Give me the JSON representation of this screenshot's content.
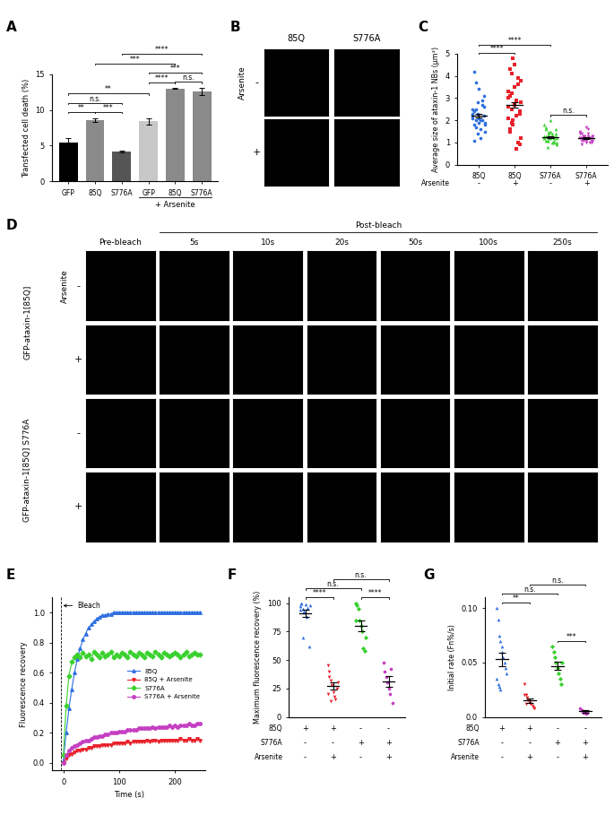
{
  "chart_data": [
    {
      "panel": "A",
      "type": "bar",
      "ylabel": "Transfected cell death (%)",
      "categories": [
        "GFP",
        "85Q",
        "S776A",
        "GFP",
        "85Q",
        "S776A"
      ],
      "values": [
        5.4,
        8.6,
        4.2,
        8.4,
        13.0,
        12.6
      ],
      "errors": [
        0.6,
        0.25,
        0.1,
        0.45,
        0.08,
        0.5
      ],
      "colors": [
        "#000000",
        "#8a8a8a",
        "#555555",
        "#c8c8c8",
        "#8a8a8a",
        "#8a8a8a"
      ],
      "ylim": [
        0,
        15
      ],
      "yticks": [
        0,
        5,
        10,
        15
      ],
      "groups": [
        {
          "label": "+ Arsenite",
          "from": 3,
          "to": 5
        }
      ],
      "comparisons": [
        {
          "from": 0,
          "to": 1,
          "label": "**"
        },
        {
          "from": 1,
          "to": 2,
          "label": "***"
        },
        {
          "from": 0,
          "to": 2,
          "label": "n.s."
        },
        {
          "from": 3,
          "to": 4,
          "label": "****"
        },
        {
          "from": 4,
          "to": 5,
          "label": "n.s."
        },
        {
          "from": 3,
          "to": 5,
          "label": "***"
        },
        {
          "from": 0,
          "to": 3,
          "label": "**"
        },
        {
          "from": 1,
          "to": 4,
          "label": "***"
        },
        {
          "from": 2,
          "to": 5,
          "label": "****"
        }
      ]
    },
    {
      "panel": "C",
      "type": "dot",
      "ylabel": "Average size of ataxin-1 NBs (µm²)",
      "categories": [
        "85Q",
        "85Q",
        "S776A",
        "S776A"
      ],
      "condition_rows": [
        {
          "label": "Arsenite",
          "values": [
            "-",
            "+",
            "-",
            "+"
          ]
        }
      ],
      "ylim": [
        0,
        5
      ],
      "yticks": [
        0,
        1,
        2,
        3,
        4,
        5
      ],
      "groups": [
        {
          "color": "#2f6fe0",
          "marker": "circle",
          "mean": 2.2,
          "error": 0.07,
          "values": [
            2.1,
            1.8,
            2.5,
            2.3,
            1.9,
            2.0,
            2.7,
            3.1,
            1.5,
            2.2,
            2.4,
            1.7,
            2.8,
            3.4,
            1.2,
            2.0,
            2.6,
            1.9,
            2.3,
            4.2,
            3.7,
            1.4,
            2.1,
            1.6,
            2.9,
            2.2,
            1.8,
            2.5,
            1.1,
            2.0
          ]
        },
        {
          "color": "#e8212b",
          "marker": "square",
          "mean": 2.7,
          "error": 0.12,
          "values": [
            2.6,
            3.1,
            1.9,
            4.8,
            4.5,
            2.2,
            3.6,
            0.9,
            2.8,
            3.3,
            1.5,
            4.1,
            2.0,
            2.7,
            0.7,
            3.9,
            2.4,
            1.2,
            3.0,
            4.3,
            2.5,
            1.8,
            3.5,
            2.9,
            1.0,
            2.3,
            3.8,
            2.1,
            1.6,
            3.2
          ]
        },
        {
          "color": "#39d12e",
          "marker": "triangle_up",
          "mean": 1.25,
          "error": 0.03,
          "values": [
            1.2,
            1.3,
            1.1,
            1.4,
            1.5,
            1.0,
            1.2,
            1.6,
            0.9,
            1.3,
            1.7,
            1.1,
            1.2,
            2.0,
            1.4,
            1.0,
            1.3,
            1.2,
            1.8,
            1.1,
            0.8,
            1.5,
            1.2,
            1.3,
            1.1,
            1.4,
            1.0,
            1.2,
            1.6,
            1.3
          ]
        },
        {
          "color": "#c53fc2",
          "marker": "triangle_down",
          "mean": 1.2,
          "error": 0.03,
          "values": [
            1.2,
            1.1,
            1.3,
            1.2,
            1.0,
            1.4,
            1.2,
            1.1,
            1.3,
            1.5,
            0.9,
            1.2,
            1.3,
            1.1,
            1.6,
            1.2,
            1.0,
            1.3,
            1.2,
            1.4,
            1.1,
            1.2,
            1.7,
            1.3,
            1.0,
            1.2,
            1.1,
            1.4,
            1.2,
            1.3
          ]
        }
      ],
      "comparisons": [
        {
          "from": 0,
          "to": 1,
          "label": "****"
        },
        {
          "from": 0,
          "to": 2,
          "label": "****"
        },
        {
          "from": 2,
          "to": 3,
          "label": "n.s."
        }
      ]
    },
    {
      "panel": "E",
      "type": "line",
      "xlabel": "Time (s)",
      "ylabel": "Fluorescence recovery",
      "xlim": [
        -20,
        255
      ],
      "xticks": [
        0,
        100,
        200
      ],
      "ylim": [
        -0.05,
        1.1
      ],
      "yticks": [
        {
          "value": 0,
          "label": "0.0"
        },
        0.2,
        0.4,
        0.6,
        0.8,
        {
          "value": 1,
          "label": "1.0"
        }
      ],
      "legend": "center right",
      "annotations": [
        {
          "text": "Bleach",
          "x": -5
        }
      ],
      "x": [
        0,
        5,
        10,
        15,
        20,
        25,
        30,
        35,
        40,
        45,
        50,
        55,
        60,
        65,
        70,
        75,
        80,
        85,
        90,
        95,
        100,
        105,
        110,
        115,
        120,
        125,
        130,
        135,
        140,
        145,
        150,
        155,
        160,
        165,
        170,
        175,
        180,
        185,
        190,
        195,
        200,
        205,
        210,
        215,
        220,
        225,
        230,
        235,
        240,
        245
      ],
      "series": [
        {
          "name": "85Q",
          "color": "#2f6fe0",
          "marker": "triangle_up",
          "line_style": "solid",
          "values": [
            0.02,
            0.2,
            0.36,
            0.49,
            0.6,
            0.69,
            0.76,
            0.82,
            0.86,
            0.9,
            0.92,
            0.94,
            0.96,
            0.97,
            0.98,
            0.98,
            0.99,
            0.99,
            1.0,
            1.0,
            1.0,
            1.0,
            1.0,
            1.0,
            1.0,
            1.0,
            1.0,
            1.0,
            1.0,
            1.0,
            1.0,
            1.0,
            1.0,
            1.0,
            1.0,
            1.0,
            1.0,
            1.0,
            1.0,
            1.0,
            1.0,
            1.0,
            1.0,
            1.0,
            1.0,
            1.0,
            1.0,
            1.0,
            1.0,
            1.0
          ]
        },
        {
          "name": "85Q + Arsenite",
          "color": "#e8212b",
          "marker": "triangle_down",
          "line_style": "solid",
          "values": [
            0.0,
            0.03,
            0.05,
            0.06,
            0.07,
            0.08,
            0.08,
            0.09,
            0.09,
            0.1,
            0.1,
            0.11,
            0.11,
            0.11,
            0.12,
            0.12,
            0.12,
            0.12,
            0.13,
            0.13,
            0.13,
            0.13,
            0.13,
            0.14,
            0.13,
            0.14,
            0.14,
            0.14,
            0.14,
            0.14,
            0.15,
            0.14,
            0.15,
            0.15,
            0.14,
            0.15,
            0.15,
            0.15,
            0.15,
            0.15,
            0.15,
            0.15,
            0.16,
            0.15,
            0.15,
            0.16,
            0.15,
            0.15,
            0.16,
            0.15
          ]
        },
        {
          "name": "S776A",
          "color": "#39d12e",
          "marker": "diamond",
          "line_style": "solid",
          "values": [
            0.05,
            0.38,
            0.58,
            0.67,
            0.7,
            0.72,
            0.7,
            0.73,
            0.71,
            0.72,
            0.69,
            0.74,
            0.72,
            0.7,
            0.73,
            0.71,
            0.72,
            0.74,
            0.7,
            0.72,
            0.71,
            0.73,
            0.72,
            0.7,
            0.74,
            0.72,
            0.71,
            0.73,
            0.72,
            0.7,
            0.73,
            0.72,
            0.71,
            0.74,
            0.72,
            0.7,
            0.73,
            0.72,
            0.71,
            0.72,
            0.73,
            0.72,
            0.7,
            0.72,
            0.74,
            0.71,
            0.72,
            0.73,
            0.72,
            0.72
          ]
        },
        {
          "name": "S776A + Arsenite",
          "color": "#c53fc2",
          "marker": "circle",
          "line_style": "solid",
          "values": [
            0.0,
            0.05,
            0.08,
            0.1,
            0.11,
            0.12,
            0.13,
            0.14,
            0.15,
            0.15,
            0.16,
            0.17,
            0.17,
            0.18,
            0.18,
            0.19,
            0.19,
            0.2,
            0.2,
            0.2,
            0.21,
            0.21,
            0.21,
            0.22,
            0.22,
            0.22,
            0.22,
            0.23,
            0.23,
            0.23,
            0.23,
            0.23,
            0.24,
            0.23,
            0.24,
            0.24,
            0.24,
            0.24,
            0.25,
            0.24,
            0.25,
            0.24,
            0.25,
            0.25,
            0.25,
            0.26,
            0.25,
            0.25,
            0.26,
            0.26
          ]
        }
      ]
    },
    {
      "panel": "F",
      "type": "dot",
      "ylabel": "Maximum fluorescence recovery (%)",
      "condition_rows": [
        {
          "label": "85Q",
          "values": [
            "+",
            "+",
            "-",
            "-"
          ]
        },
        {
          "label": "S776A",
          "values": [
            "-",
            "-",
            "+",
            "+"
          ]
        },
        {
          "label": "Arsenite",
          "values": [
            "-",
            "+",
            "-",
            "+"
          ]
        }
      ],
      "ylim": [
        0,
        105
      ],
      "yticks": [
        0,
        25,
        50,
        75,
        100
      ],
      "groups": [
        {
          "color": "#2f6fe0",
          "marker": "triangle_up",
          "mean": 91,
          "error": 3.5,
          "values": [
            97,
            100,
            95,
            92,
            99,
            88,
            96,
            62,
            98,
            94,
            100,
            70,
            93
          ]
        },
        {
          "color": "#e8212b",
          "marker": "triangle_down",
          "mean": 27,
          "error": 3,
          "values": [
            45,
            40,
            32,
            28,
            22,
            18,
            15,
            25,
            30,
            20,
            35,
            14
          ]
        },
        {
          "color": "#39d12e",
          "marker": "diamond",
          "mean": 80,
          "error": 5,
          "values": [
            100,
            98,
            95,
            85,
            80,
            75,
            60,
            58,
            70,
            85
          ]
        },
        {
          "color": "#c53fc2",
          "marker": "circle",
          "mean": 31,
          "error": 4.5,
          "values": [
            48,
            40,
            35,
            30,
            25,
            20,
            42,
            12
          ]
        }
      ],
      "comparisons": [
        {
          "from": 0,
          "to": 1,
          "label": "****"
        },
        {
          "from": 2,
          "to": 3,
          "label": "****"
        },
        {
          "from": 0,
          "to": 2,
          "label": "n.s."
        },
        {
          "from": 1,
          "to": 3,
          "label": "n.s."
        }
      ]
    },
    {
      "panel": "G",
      "type": "dot",
      "ylabel": "Initial rate (Fn%/s)",
      "condition_rows": [
        {
          "label": "85Q",
          "values": [
            "+",
            "+",
            "-",
            "-"
          ]
        },
        {
          "label": "S776A",
          "values": [
            "-",
            "-",
            "+",
            "+"
          ]
        },
        {
          "label": "Arsenite",
          "values": [
            "-",
            "+",
            "-",
            "+"
          ]
        }
      ],
      "ylim": [
        0,
        0.11
      ],
      "yticks": [
        {
          "value": 0,
          "label": "0.0"
        },
        0.05,
        {
          "value": 0.1,
          "label": "0.10"
        }
      ],
      "groups": [
        {
          "color": "#2f6fe0",
          "marker": "triangle_up",
          "mean": 0.053,
          "error": 0.006,
          "values": [
            0.1,
            0.09,
            0.075,
            0.07,
            0.06,
            0.055,
            0.05,
            0.045,
            0.04,
            0.035,
            0.03,
            0.028,
            0.025,
            0.065
          ]
        },
        {
          "color": "#e8212b",
          "marker": "triangle_down",
          "mean": 0.015,
          "error": 0.002,
          "values": [
            0.03,
            0.02,
            0.018,
            0.015,
            0.013,
            0.012,
            0.01,
            0.009,
            0.008,
            0.02,
            0.012
          ]
        },
        {
          "color": "#39d12e",
          "marker": "diamond",
          "mean": 0.047,
          "error": 0.004,
          "values": [
            0.065,
            0.06,
            0.055,
            0.05,
            0.045,
            0.04,
            0.035,
            0.03,
            0.05
          ]
        },
        {
          "color": "#c53fc2",
          "marker": "circle",
          "mean": 0.005,
          "error": 0.001,
          "values": [
            0.008,
            0.006,
            0.005,
            0.004,
            0.005,
            0.003,
            0.004
          ]
        }
      ],
      "comparisons": [
        {
          "from": 0,
          "to": 1,
          "label": "**"
        },
        {
          "from": 2,
          "to": 3,
          "label": "***"
        },
        {
          "from": 0,
          "to": 2,
          "label": "n.s."
        },
        {
          "from": 1,
          "to": 3,
          "label": "n.s."
        }
      ]
    }
  ],
  "image_panels": [
    {
      "panel": "B",
      "columns": [
        "85Q",
        "S776A"
      ],
      "row_header": "Arsenite",
      "row_labels": [
        "-",
        "+"
      ]
    },
    {
      "panel": "D",
      "columns": [
        "Pre-bleach",
        "5s",
        "10s",
        "20s",
        "50s",
        "100s",
        "250s"
      ],
      "column_group": "Post-bleach",
      "row_header": "Arsenite",
      "row_labels": [
        "-",
        "+",
        "-",
        "+"
      ],
      "row_groups": [
        {
          "label": "GFP-ataxin-1[85Q]",
          "rows": [
            0,
            1
          ]
        },
        {
          "label": "GFP-ataxin-1[85Q] S776A",
          "rows": [
            2,
            3
          ]
        }
      ]
    }
  ]
}
